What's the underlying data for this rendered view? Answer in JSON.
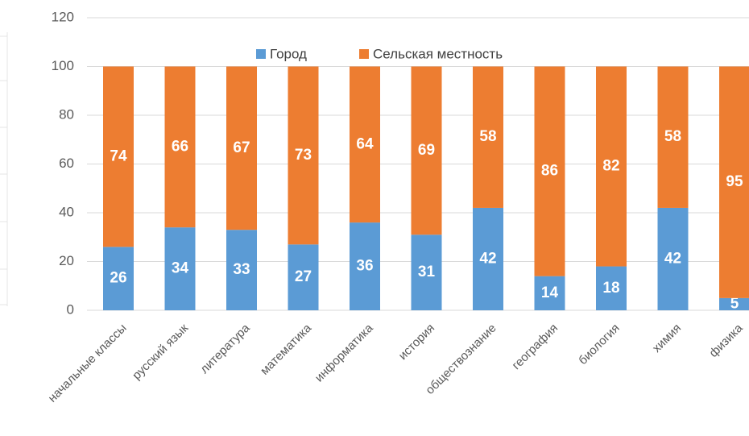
{
  "chart_data": {
    "type": "stacked_bar",
    "categories": [
      "начальные классы",
      "русский язык",
      "литература",
      "математика",
      "информатика",
      "история",
      "обществознание",
      "география",
      "биология",
      "химия",
      "физика"
    ],
    "series": [
      {
        "name": "Город",
        "color": "#5b9bd5",
        "values": [
          26,
          34,
          33,
          27,
          36,
          31,
          42,
          14,
          18,
          42,
          5
        ]
      },
      {
        "name": "Сельская местность",
        "color": "#ed7d31",
        "values": [
          74,
          66,
          67,
          73,
          64,
          69,
          58,
          86,
          82,
          58,
          95
        ]
      }
    ],
    "ylim": [
      0,
      120
    ],
    "yticks": [
      0,
      20,
      40,
      60,
      80,
      100,
      120
    ],
    "grid": true,
    "legend": "top"
  }
}
